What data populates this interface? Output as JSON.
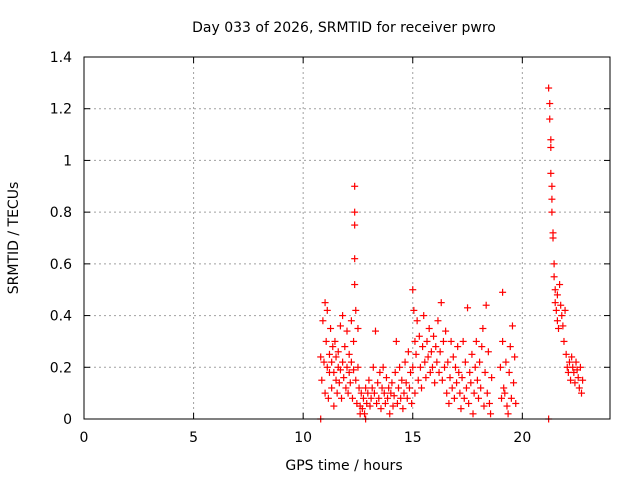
{
  "chart_data": {
    "type": "scatter",
    "title": "Day 033 of 2026, SRMTID for receiver pwro",
    "xlabel": "GPS time / hours",
    "ylabel": "SRMTID / TECUs",
    "xlim": [
      0,
      24
    ],
    "ylim": [
      0,
      1.4
    ],
    "xticks": [
      0,
      5,
      10,
      15,
      20
    ],
    "yticks": [
      0,
      0.2,
      0.4,
      0.6,
      0.8,
      1,
      1.2,
      1.4
    ],
    "ytick_labels": [
      "0",
      "0.2",
      "0.4",
      "0.6",
      "0.8",
      "1",
      "1.2",
      "1.4"
    ],
    "grid": true,
    "marker": "plus",
    "color": "#ff0000",
    "series": [
      {
        "x": [
          10.8,
          10.85,
          10.9,
          10.95,
          11.0,
          11.0,
          11.05,
          11.1,
          11.1,
          11.15,
          11.2,
          11.2,
          11.25,
          11.3,
          11.3,
          11.35,
          11.4,
          11.4,
          11.45,
          11.5,
          11.5,
          11.55,
          11.6,
          11.6,
          11.65,
          11.7,
          11.7,
          11.75,
          11.8,
          11.8,
          11.85,
          11.9,
          11.95,
          12.0,
          12.0,
          12.05,
          12.1,
          12.1,
          12.15,
          12.2,
          12.2,
          12.25,
          12.3,
          12.3,
          12.35,
          12.35,
          12.35,
          12.35,
          12.35,
          12.4,
          12.4,
          12.45,
          12.5,
          12.5,
          12.55,
          12.6,
          12.6,
          12.65,
          12.7,
          12.75,
          12.8,
          12.85,
          12.9,
          12.95,
          13.0,
          13.05,
          13.1,
          13.15,
          13.2,
          13.25,
          13.3,
          13.35,
          13.4,
          13.45,
          13.5,
          13.55,
          13.6,
          13.65,
          13.7,
          13.75,
          13.8,
          13.85,
          13.9,
          13.95,
          14.0,
          14.05,
          14.1,
          14.15,
          14.2,
          14.25,
          14.3,
          14.35,
          14.4,
          14.45,
          14.5,
          14.55,
          14.6,
          14.65,
          14.7,
          14.75,
          14.8,
          14.85,
          14.9,
          14.95,
          15.0,
          15.0,
          15.05,
          15.1,
          15.1,
          15.15,
          15.2,
          15.25,
          15.3,
          15.35,
          15.4,
          15.45,
          15.5,
          15.55,
          15.6,
          15.65,
          15.7,
          15.75,
          15.8,
          15.85,
          15.9,
          15.95,
          16.0,
          16.05,
          16.1,
          16.15,
          16.2,
          16.25,
          16.3,
          16.35,
          16.4,
          16.45,
          16.5,
          16.55,
          16.6,
          16.65,
          16.7,
          16.75,
          16.8,
          16.85,
          16.9,
          16.95,
          17.0,
          17.05,
          17.1,
          17.15,
          17.2,
          17.25,
          17.3,
          17.35,
          17.4,
          17.45,
          17.5,
          17.55,
          17.6,
          17.65,
          17.7,
          17.75,
          17.8,
          17.85,
          17.9,
          17.95,
          18.0,
          18.05,
          18.1,
          18.15,
          18.2,
          18.25,
          18.3,
          18.35,
          18.4,
          18.45,
          18.5,
          18.55,
          18.6,
          19.0,
          19.05,
          19.1,
          19.1,
          19.15,
          19.2,
          19.25,
          19.3,
          19.35,
          19.4,
          19.45,
          19.5,
          19.55,
          19.6,
          19.65,
          19.7,
          21.2,
          21.25,
          21.25,
          21.3,
          21.3,
          21.3,
          21.35,
          21.35,
          21.35,
          21.4,
          21.4,
          21.45,
          21.45,
          21.5,
          21.5,
          21.55,
          21.6,
          21.6,
          21.65,
          21.7,
          21.75,
          21.8,
          21.85,
          21.9,
          21.95,
          22.0,
          22.05,
          22.1,
          22.15,
          22.2,
          22.25,
          22.3,
          22.35,
          22.4,
          22.45,
          22.5,
          22.55,
          22.6,
          22.65,
          22.7,
          22.75,
          10.8,
          12.85,
          21.2
        ],
        "y": [
          0.24,
          0.15,
          0.38,
          0.22,
          0.45,
          0.1,
          0.3,
          0.2,
          0.42,
          0.08,
          0.25,
          0.18,
          0.35,
          0.12,
          0.22,
          0.28,
          0.05,
          0.18,
          0.3,
          0.15,
          0.24,
          0.1,
          0.2,
          0.26,
          0.14,
          0.36,
          0.19,
          0.08,
          0.22,
          0.4,
          0.16,
          0.28,
          0.12,
          0.2,
          0.34,
          0.1,
          0.18,
          0.25,
          0.14,
          0.22,
          0.38,
          0.08,
          0.19,
          0.3,
          0.9,
          0.8,
          0.75,
          0.62,
          0.52,
          0.42,
          0.15,
          0.06,
          0.2,
          0.35,
          0.12,
          0.02,
          0.05,
          0.1,
          0.04,
          0.08,
          0.02,
          0.12,
          0.06,
          0.1,
          0.15,
          0.05,
          0.08,
          0.12,
          0.2,
          0.1,
          0.34,
          0.06,
          0.14,
          0.08,
          0.18,
          0.04,
          0.12,
          0.2,
          0.1,
          0.06,
          0.16,
          0.08,
          0.12,
          0.02,
          0.1,
          0.14,
          0.05,
          0.09,
          0.18,
          0.3,
          0.06,
          0.12,
          0.2,
          0.08,
          0.15,
          0.04,
          0.1,
          0.22,
          0.14,
          0.08,
          0.26,
          0.12,
          0.18,
          0.06,
          0.5,
          0.2,
          0.42,
          0.3,
          0.1,
          0.25,
          0.38,
          0.15,
          0.32,
          0.2,
          0.12,
          0.28,
          0.4,
          0.22,
          0.16,
          0.3,
          0.24,
          0.35,
          0.18,
          0.26,
          0.2,
          0.32,
          0.14,
          0.28,
          0.22,
          0.38,
          0.18,
          0.26,
          0.45,
          0.15,
          0.3,
          0.2,
          0.34,
          0.1,
          0.22,
          0.06,
          0.16,
          0.3,
          0.12,
          0.24,
          0.08,
          0.2,
          0.14,
          0.28,
          0.18,
          0.1,
          0.04,
          0.16,
          0.3,
          0.08,
          0.22,
          0.12,
          0.43,
          0.06,
          0.18,
          0.14,
          0.25,
          0.02,
          0.1,
          0.2,
          0.3,
          0.15,
          0.08,
          0.22,
          0.12,
          0.28,
          0.35,
          0.05,
          0.18,
          0.44,
          0.1,
          0.26,
          0.06,
          0.02,
          0.16,
          0.2,
          0.08,
          0.3,
          0.49,
          0.12,
          0.1,
          0.22,
          0.05,
          0.02,
          0.18,
          0.28,
          0.08,
          0.36,
          0.14,
          0.24,
          0.06,
          1.28,
          1.22,
          1.16,
          1.08,
          1.05,
          0.95,
          0.9,
          0.85,
          0.8,
          0.72,
          0.7,
          0.6,
          0.55,
          0.5,
          0.45,
          0.42,
          0.38,
          0.48,
          0.35,
          0.52,
          0.44,
          0.4,
          0.36,
          0.3,
          0.42,
          0.25,
          0.2,
          0.18,
          0.22,
          0.15,
          0.24,
          0.2,
          0.18,
          0.14,
          0.22,
          0.19,
          0.16,
          0.12,
          0.2,
          0.1,
          0.15,
          0.0,
          0.0,
          0.0
        ]
      }
    ]
  }
}
